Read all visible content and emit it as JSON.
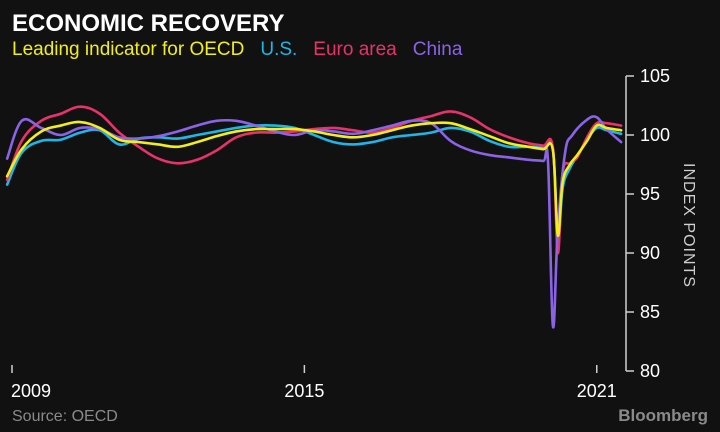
{
  "chart_data": {
    "type": "line",
    "title": "ECONOMIC RECOVERY",
    "ylabel": "INDEX POINTS",
    "source": "Source: OECD",
    "brand": "Bloomberg",
    "x_range": [
      2009.0,
      2021.6
    ],
    "ylim": [
      80,
      105
    ],
    "y_ticks": [
      80,
      85,
      90,
      95,
      100,
      105
    ],
    "x_ticks": [
      {
        "value": 2009.0,
        "label": "2009"
      },
      {
        "value": 2015.0,
        "label": "2015"
      },
      {
        "value": 2021.0,
        "label": "2021"
      }
    ],
    "legend_position": "top-left",
    "grid": false,
    "series": [
      {
        "name": "Leading indicator for OECD",
        "color": "#f2ee1a",
        "x": [
          2008.9,
          2009.2,
          2009.6,
          2010.0,
          2010.4,
          2010.8,
          2011.2,
          2011.6,
          2012.0,
          2012.4,
          2012.8,
          2013.2,
          2013.6,
          2014.0,
          2014.4,
          2014.8,
          2015.2,
          2015.6,
          2016.0,
          2016.4,
          2016.8,
          2017.2,
          2017.6,
          2018.0,
          2018.4,
          2018.8,
          2019.2,
          2019.6,
          2019.9,
          2020.1,
          2020.2,
          2020.3,
          2020.45,
          2020.6,
          2020.8,
          2021.0,
          2021.2,
          2021.5
        ],
        "y": [
          96.5,
          98.8,
          100.3,
          100.8,
          101.1,
          100.6,
          99.6,
          99.4,
          99.2,
          99.0,
          99.4,
          99.9,
          100.3,
          100.5,
          100.5,
          100.5,
          100.3,
          100.0,
          99.8,
          100.0,
          100.4,
          100.8,
          101.0,
          101.0,
          100.5,
          99.9,
          99.3,
          99.0,
          98.8,
          98.7,
          91.5,
          96.0,
          97.5,
          98.3,
          99.5,
          100.8,
          100.6,
          100.4
        ]
      },
      {
        "name": "U.S.",
        "color": "#1fb5e6",
        "x": [
          2008.9,
          2009.2,
          2009.6,
          2010.0,
          2010.4,
          2010.8,
          2011.2,
          2011.6,
          2012.0,
          2012.4,
          2012.8,
          2013.2,
          2013.6,
          2014.0,
          2014.4,
          2014.8,
          2015.2,
          2015.6,
          2016.0,
          2016.4,
          2016.8,
          2017.2,
          2017.6,
          2018.0,
          2018.4,
          2018.8,
          2019.2,
          2019.6,
          2019.9,
          2020.1,
          2020.2,
          2020.3,
          2020.45,
          2020.6,
          2020.8,
          2021.0,
          2021.2,
          2021.5
        ],
        "y": [
          95.8,
          98.5,
          99.5,
          99.6,
          100.2,
          100.4,
          99.2,
          99.7,
          99.8,
          99.7,
          100.0,
          100.3,
          100.6,
          100.8,
          100.8,
          100.6,
          100.0,
          99.4,
          99.2,
          99.4,
          99.8,
          100.0,
          100.2,
          100.6,
          100.3,
          99.5,
          99.0,
          99.0,
          98.9,
          98.8,
          91.0,
          95.5,
          97.2,
          98.2,
          99.6,
          100.6,
          100.4,
          100.1
        ]
      },
      {
        "name": "Euro area",
        "color": "#e8326a",
        "x": [
          2008.9,
          2009.2,
          2009.6,
          2010.0,
          2010.4,
          2010.8,
          2011.2,
          2011.6,
          2012.0,
          2012.4,
          2012.8,
          2013.2,
          2013.6,
          2014.0,
          2014.4,
          2014.8,
          2015.2,
          2015.6,
          2016.0,
          2016.4,
          2016.8,
          2017.2,
          2017.6,
          2018.0,
          2018.4,
          2018.8,
          2019.2,
          2019.6,
          2019.9,
          2020.1,
          2020.2,
          2020.3,
          2020.45,
          2020.6,
          2020.8,
          2021.0,
          2021.2,
          2021.5
        ],
        "y": [
          96.2,
          99.5,
          101.2,
          101.8,
          102.4,
          101.8,
          100.2,
          99.0,
          98.0,
          97.6,
          97.9,
          98.7,
          99.8,
          100.2,
          100.2,
          100.3,
          100.5,
          100.6,
          100.4,
          100.2,
          100.6,
          101.2,
          101.6,
          102.0,
          101.5,
          100.5,
          99.8,
          99.3,
          99.1,
          98.9,
          90.0,
          96.8,
          97.6,
          98.1,
          99.8,
          101.0,
          101.0,
          100.8
        ]
      },
      {
        "name": "China",
        "color": "#8b63e6",
        "x": [
          2008.9,
          2009.2,
          2009.6,
          2010.0,
          2010.4,
          2010.8,
          2011.2,
          2011.6,
          2012.0,
          2012.4,
          2012.8,
          2013.2,
          2013.6,
          2014.0,
          2014.4,
          2014.8,
          2015.2,
          2015.6,
          2016.0,
          2016.4,
          2016.8,
          2017.2,
          2017.6,
          2018.0,
          2018.4,
          2018.8,
          2019.2,
          2019.6,
          2019.9,
          2020.0,
          2020.1,
          2020.2,
          2020.35,
          2020.5,
          2020.8,
          2021.0,
          2021.2,
          2021.5
        ],
        "y": [
          98.0,
          101.2,
          100.6,
          100.0,
          100.6,
          100.5,
          99.8,
          99.7,
          99.9,
          100.3,
          100.8,
          101.2,
          101.2,
          100.8,
          100.3,
          100.0,
          100.4,
          100.3,
          100.1,
          100.4,
          100.8,
          101.2,
          101.0,
          99.5,
          98.7,
          98.3,
          98.1,
          97.9,
          97.8,
          97.7,
          83.8,
          92.0,
          98.5,
          100.0,
          101.3,
          101.5,
          100.5,
          99.4
        ]
      }
    ]
  }
}
